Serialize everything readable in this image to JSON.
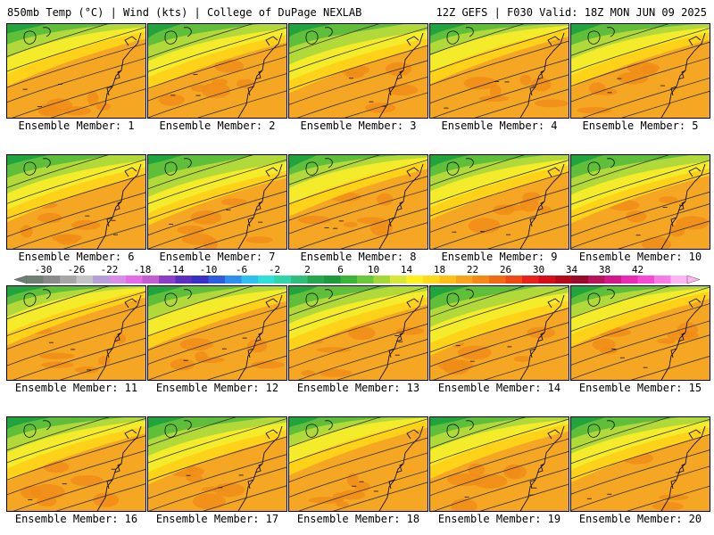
{
  "header": {
    "left": "850mb Temp (°C) | Wind (kts) | College of DuPage NEXLAB",
    "right": "12Z GEFS | F030 Valid: 18Z MON JUN 09 2025"
  },
  "panel_label_prefix": "Ensemble Member: ",
  "members": [
    "1",
    "2",
    "3",
    "4",
    "5",
    "6",
    "7",
    "8",
    "9",
    "10",
    "11",
    "12",
    "13",
    "14",
    "15",
    "16",
    "17",
    "18",
    "19",
    "20"
  ],
  "colorbar": {
    "tick_labels": [
      "-30",
      "-26",
      "-22",
      "-18",
      "-14",
      "-10",
      "-6",
      "-2",
      "2",
      "6",
      "10",
      "14",
      "18",
      "22",
      "26",
      "30",
      "34",
      "38",
      "42"
    ],
    "colors": [
      "#6e7f75",
      "#8a8a8a",
      "#a6a6a6",
      "#c4c4c4",
      "#b5a0d8",
      "#d88ee8",
      "#e46ce6",
      "#c65bd6",
      "#8b3ec9",
      "#5b2fc0",
      "#3a30c8",
      "#2f5de0",
      "#2f8ff0",
      "#30c0f0",
      "#2fe0d8",
      "#2ed6a8",
      "#2fbf7a",
      "#25a84d",
      "#1f9a3a",
      "#3cb43a",
      "#6cc83a",
      "#a4d83a",
      "#d8e83a",
      "#fff21f",
      "#ffd91a",
      "#ffbf14",
      "#f7a41c",
      "#f48a14",
      "#f26a12",
      "#ef4a12",
      "#e8241a",
      "#d40f1a",
      "#b40a1a",
      "#9a0a2a",
      "#b8125a",
      "#d4188a",
      "#e82ab4",
      "#f44ad6",
      "#fa7ae8",
      "#ffb4f4"
    ]
  }
}
